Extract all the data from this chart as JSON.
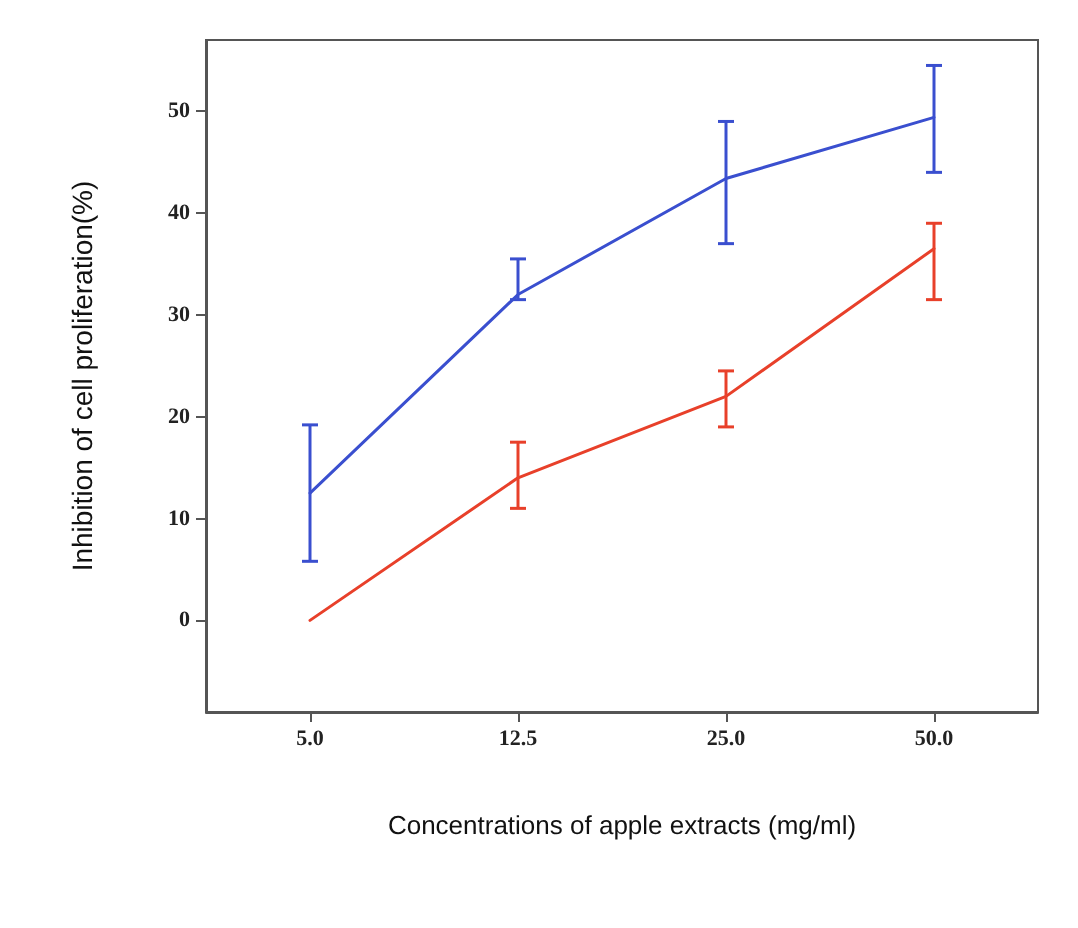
{
  "chart_data": {
    "type": "line",
    "xlabel": "Concentrations of apple extracts (mg/ml)",
    "ylabel": "Inhibition of cell proliferation(%)",
    "categories": [
      "5.0",
      "12.5",
      "25.0",
      "50.0"
    ],
    "series": [
      {
        "color": "#e8402a",
        "values": [
          0,
          14,
          22,
          36.5
        ],
        "errors": [
          null,
          [
            11,
            17.5
          ],
          [
            19,
            24.5
          ],
          [
            31.5,
            39
          ]
        ]
      },
      {
        "color": "#3a4fcf",
        "values": [
          12.5,
          32,
          43.4,
          49.4
        ],
        "errors": [
          [
            5.8,
            19.2
          ],
          [
            31.5,
            35.5
          ],
          [
            37,
            49
          ],
          [
            44,
            54.5
          ]
        ]
      }
    ],
    "ylim": [
      -9,
      57
    ],
    "yticks": [
      0,
      10,
      20,
      30,
      40,
      50
    ],
    "grid": false,
    "marker": "none",
    "line_style": "solid"
  }
}
